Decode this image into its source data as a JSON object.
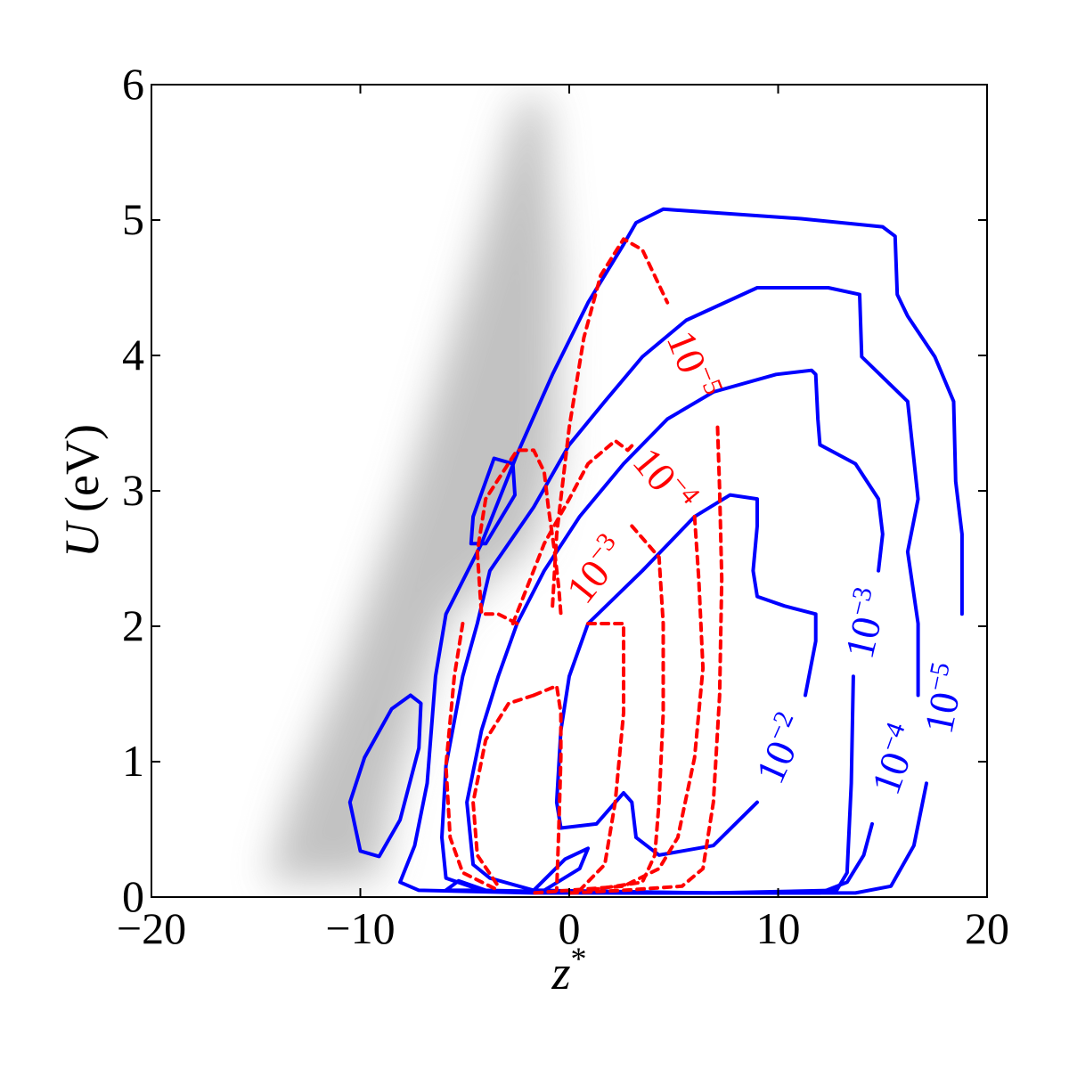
{
  "chart_data": {
    "type": "contour",
    "xlabel": {
      "base": "z",
      "superscript": "*"
    },
    "ylabel": {
      "italic": "U",
      "text": "(eV)"
    },
    "xlim": [
      -20,
      20
    ],
    "ylim": [
      0,
      6
    ],
    "xticks": [
      {
        "value": -20,
        "label": "−20"
      },
      {
        "value": -10,
        "label": "−10"
      },
      0,
      10,
      20
    ],
    "yticks": [
      0,
      1,
      2,
      3,
      4,
      5,
      6
    ],
    "series": [
      {
        "color": "#0000ff",
        "style": "solid",
        "level": 1e-05,
        "label": {
          "base": "10",
          "exponent": "−5"
        },
        "x": [
          18.8,
          18.8,
          18.5,
          18.4,
          17.5,
          16.2,
          15.7,
          15.6,
          15.0,
          11.1,
          4.5,
          3.2,
          2.6,
          0.9,
          -0.8,
          -2.5,
          -4.2,
          -5.9,
          -6.4,
          -6.8,
          -7.4,
          -8.1,
          -7.2,
          -1.7,
          6.9,
          13.7,
          15.4,
          16.5,
          17.1
        ],
        "y": [
          2.09,
          2.68,
          3.07,
          3.66,
          3.99,
          4.29,
          4.45,
          4.88,
          4.95,
          5.01,
          5.08,
          4.98,
          4.82,
          4.39,
          3.86,
          3.27,
          2.61,
          2.09,
          1.63,
          0.84,
          0.38,
          0.11,
          0.05,
          0.03,
          0.03,
          0.03,
          0.08,
          0.38,
          0.84
        ]
      },
      {
        "color": "#0000ff",
        "style": "solid",
        "level": 0.0001,
        "label": {
          "base": "10",
          "exponent": "−4"
        },
        "x": [
          16.7,
          16.7,
          16.2,
          16.7,
          16.2,
          14.0,
          13.9,
          12.4,
          9.0,
          5.6,
          3.5,
          1.7,
          0.0,
          -1.7,
          -3.8,
          -4.4,
          -5.1,
          -5.9,
          -6.1,
          -5.9,
          -4.2,
          2.6,
          12.0,
          13.3,
          14.1,
          14.5
        ],
        "y": [
          1.49,
          2.02,
          2.55,
          2.94,
          3.66,
          3.99,
          4.45,
          4.5,
          4.5,
          4.26,
          3.99,
          3.66,
          3.34,
          2.88,
          2.41,
          2.02,
          1.63,
          0.97,
          0.44,
          0.14,
          0.05,
          0.03,
          0.03,
          0.11,
          0.31,
          0.54
        ]
      },
      {
        "color": "#0000ff",
        "style": "solid",
        "level": 0.001,
        "label": {
          "base": "10",
          "exponent": "−3"
        },
        "x": [
          14.8,
          15.0,
          14.8,
          13.7,
          12.0,
          11.9,
          11.8,
          11.6,
          9.9,
          6.9,
          4.7,
          2.6,
          0.5,
          -1.2,
          -2.5,
          -3.4,
          -4.2,
          -4.9,
          -4.6,
          -3.8,
          -1.7,
          6.9,
          12.8,
          13.3,
          13.5,
          13.6
        ],
        "y": [
          2.41,
          2.68,
          2.94,
          3.2,
          3.34,
          3.53,
          3.86,
          3.89,
          3.86,
          3.73,
          3.53,
          3.2,
          2.81,
          2.41,
          2.02,
          1.63,
          1.23,
          0.7,
          0.24,
          0.14,
          0.05,
          0.03,
          0.05,
          0.18,
          0.84,
          1.63
        ]
      },
      {
        "color": "#0000ff",
        "style": "solid",
        "level": 0.01,
        "label": {
          "base": "10",
          "exponent": "−2"
        },
        "x": [
          11.3,
          11.8,
          11.8,
          10.3,
          9.0,
          8.8,
          9.0,
          9.0,
          7.7,
          6.0,
          3.5,
          0.9,
          0.0,
          -0.4,
          -0.6,
          -0.4,
          1.3,
          2.6,
          3.0,
          3.2,
          4.3,
          6.9,
          9.0
        ],
        "y": [
          1.49,
          1.89,
          2.09,
          2.15,
          2.22,
          2.41,
          2.74,
          2.94,
          2.97,
          2.81,
          2.41,
          2.02,
          1.63,
          1.23,
          0.7,
          0.51,
          0.54,
          0.77,
          0.7,
          0.44,
          0.31,
          0.38,
          0.7
        ]
      },
      {
        "color": "#0000ff",
        "style": "solid",
        "x": [
          -3.6,
          -2.7,
          -2.6,
          -4.0,
          -4.7,
          -4.6,
          -3.6
        ],
        "y": [
          3.24,
          3.2,
          2.97,
          2.61,
          2.61,
          2.81,
          3.24
        ]
      },
      {
        "color": "#0000ff",
        "style": "solid",
        "x": [
          -7.6,
          -7.1,
          -7.2,
          -8.1,
          -9.1,
          -10.0,
          -10.5,
          -9.8,
          -8.5,
          -7.6
        ],
        "y": [
          1.49,
          1.43,
          1.1,
          0.57,
          0.3,
          0.34,
          0.7,
          1.03,
          1.39,
          1.49
        ]
      },
      {
        "color": "#0000ff",
        "style": "solid",
        "x": [
          -1.7,
          -0.2,
          0.9,
          0.5,
          -1.2,
          -1.7
        ],
        "y": [
          0.05,
          0.28,
          0.36,
          0.21,
          0.05,
          0.05
        ]
      },
      {
        "color": "#0000ff",
        "style": "solid",
        "x": [
          -5.9,
          -5.3,
          -4.0,
          -5.9
        ],
        "y": [
          0.05,
          0.12,
          0.05,
          0.05
        ]
      },
      {
        "color": "#ff0000",
        "style": "dashed",
        "level": 1e-05,
        "label": {
          "base": "10",
          "exponent": "−5"
        },
        "x": [
          7.1,
          7.2,
          7.3,
          7.2,
          6.9,
          6.4,
          5.4,
          2.6,
          0.0,
          null,
          -0.8,
          -0.6,
          0.0,
          0.7,
          1.5,
          2.6,
          3.5,
          4.7
        ],
        "y": [
          3.47,
          3.01,
          2.35,
          1.49,
          0.7,
          0.21,
          0.08,
          0.05,
          0.03,
          null,
          2.15,
          2.68,
          3.47,
          4.13,
          4.59,
          4.86,
          4.78,
          4.39
        ]
      },
      {
        "color": "#ff0000",
        "style": "dashed",
        "level": 0.0001,
        "label": {
          "base": "10",
          "exponent": "−4"
        },
        "x": [
          6.0,
          6.2,
          6.4,
          6.0,
          5.2,
          4.3,
          2.6,
          -1.7,
          null,
          -2.7,
          -1.2,
          0.0,
          0.9,
          2.2,
          2.8,
          3.1
        ],
        "y": [
          2.81,
          2.35,
          1.69,
          1.03,
          0.44,
          0.21,
          0.08,
          0.03,
          null,
          2.02,
          2.61,
          2.94,
          3.2,
          3.37,
          3.3,
          3.35
        ]
      },
      {
        "color": "#ff0000",
        "style": "dashed",
        "level": 0.001,
        "label": {
          "base": "10",
          "exponent": "−3"
        },
        "x": [
          3.0,
          4.3,
          4.5,
          4.5,
          4.3,
          4.1,
          3.5,
          0.9,
          null,
          -2.5,
          -3.4,
          -4.2,
          -4.4,
          -4.0,
          -2.5,
          -1.7,
          -1.2,
          -1.0,
          -0.7,
          -0.5,
          -0.4
        ],
        "y": [
          2.74,
          2.51,
          2.02,
          1.36,
          0.7,
          0.31,
          0.11,
          0.05,
          null,
          2.02,
          2.09,
          2.09,
          2.55,
          2.94,
          3.3,
          3.3,
          3.14,
          2.88,
          2.55,
          2.28,
          2.09
        ]
      },
      {
        "color": "#ff0000",
        "style": "dashed",
        "x": [
          -5.1,
          -5.5,
          -5.9,
          -5.7,
          -5.1,
          -3.4
        ],
        "y": [
          2.02,
          1.63,
          0.97,
          0.44,
          0.18,
          0.05
        ]
      },
      {
        "color": "#ff0000",
        "style": "dashed",
        "x": [
          0.9,
          2.6,
          2.6,
          2.2,
          1.7,
          0.5
        ],
        "y": [
          2.02,
          2.02,
          1.36,
          0.7,
          0.24,
          0.05
        ]
      },
      {
        "color": "#ff0000",
        "style": "dashed",
        "x": [
          -1.7,
          -2.9,
          -4.0,
          -4.6,
          -4.4,
          -3.4
        ],
        "y": [
          1.49,
          1.43,
          1.16,
          0.7,
          0.31,
          0.08
        ]
      },
      {
        "color": "#ff0000",
        "style": "dashed",
        "x": [
          -1.7,
          -0.6,
          -0.4,
          -0.4,
          -0.5,
          -0.6
        ],
        "y": [
          1.49,
          1.56,
          1.36,
          1.03,
          0.51,
          0.05
        ]
      }
    ]
  }
}
